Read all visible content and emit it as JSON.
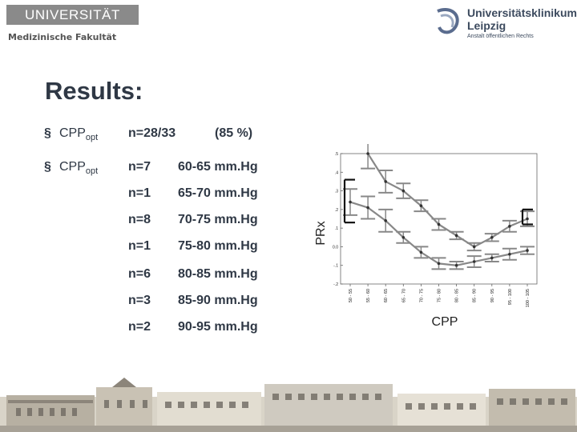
{
  "header": {
    "university_logo": "UNIVERSITÄT LEIPZIG",
    "faculty": "Medizinische Fakultät",
    "clinic_logo_line1": "Universitätsklinikum",
    "clinic_logo_line2": "Leipzig",
    "clinic_logo_line3": "Anstalt öffentlichen Rechts",
    "clinic_logo_icon": "swirl-logo-icon"
  },
  "title": "Results:",
  "bullets": [
    {
      "symbol": "§",
      "label": "CPP",
      "sub": "opt",
      "n": "n=28/33",
      "extra": "(85 %)"
    },
    {
      "symbol": "§",
      "label": "CPP",
      "sub": "opt",
      "n": "n=7",
      "extra": "60-65 mm.Hg"
    }
  ],
  "rows": [
    {
      "n": "n=1",
      "range": "65-70 mm.Hg"
    },
    {
      "n": "n=8",
      "range": "70-75 mm.Hg"
    },
    {
      "n": "n=1",
      "range": "75-80 mm.Hg"
    },
    {
      "n": "n=6",
      "range": "80-85 mm.Hg"
    },
    {
      "n": "n=3",
      "range": "85-90 mm.Hg"
    },
    {
      "n": "n=2",
      "range": "90-95 mm.Hg"
    }
  ],
  "chart_data": {
    "type": "line",
    "title": "",
    "xlabel": "CPP",
    "ylabel": "PRx",
    "categories": [
      "50 - 55",
      "55 - 60",
      "60 - 65",
      "65 - 70",
      "70 - 75",
      "75 - 80",
      "80 - 85",
      "85 - 90",
      "90 - 95",
      "95 - 100",
      "100 - 105"
    ],
    "yticks": [
      ".5",
      ".4",
      ".3",
      ".2",
      ".1",
      "0.0",
      "-.1",
      "-.2"
    ],
    "ylim": [
      -0.2,
      0.5
    ],
    "grid": false,
    "series": [
      {
        "values": [
          0.24,
          0.21,
          0.14,
          0.05,
          -0.03,
          -0.09,
          -0.1,
          -0.08,
          -0.06,
          -0.04,
          -0.02
        ],
        "err": [
          0.07,
          0.06,
          0.06,
          0.03,
          0.03,
          0.03,
          0.02,
          0.03,
          0.02,
          0.03,
          0.02
        ]
      },
      {
        "values": [
          null,
          0.5,
          0.35,
          0.3,
          0.22,
          0.12,
          0.06,
          0.0,
          0.05,
          0.11,
          0.15
        ],
        "err": [
          null,
          0.08,
          0.06,
          0.04,
          0.03,
          0.03,
          0.02,
          0.02,
          0.02,
          0.03,
          0.04
        ]
      }
    ],
    "annotations": [
      {
        "type": "bracket",
        "x": 0,
        "ylow": 0.13,
        "yhigh": 0.36
      },
      {
        "type": "bracket",
        "x": 10,
        "ylow": 0.12,
        "yhigh": 0.2
      }
    ],
    "colors": {
      "line": "#888888",
      "marker": "#333333",
      "text": "#222222"
    }
  },
  "footer": {
    "photo": "building-photo"
  }
}
